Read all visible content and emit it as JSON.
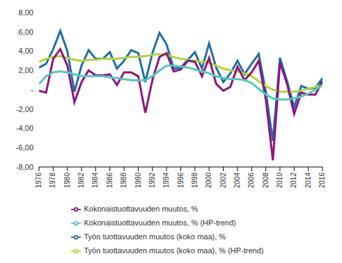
{
  "chart_data": {
    "type": "line",
    "x": [
      1976,
      1977,
      1978,
      1979,
      1980,
      1981,
      1982,
      1983,
      1984,
      1985,
      1986,
      1987,
      1988,
      1989,
      1990,
      1991,
      1992,
      1993,
      1994,
      1995,
      1996,
      1997,
      1998,
      1999,
      2000,
      2001,
      2002,
      2003,
      2004,
      2005,
      2006,
      2007,
      2008,
      2009,
      2010,
      2011,
      2012,
      2013,
      2014,
      2015,
      2016
    ],
    "xlim": [
      1976,
      2016
    ],
    "xticks": [
      1976,
      1978,
      1980,
      1982,
      1984,
      1986,
      1988,
      1990,
      1992,
      1994,
      1996,
      1998,
      2000,
      2002,
      2004,
      2006,
      2008,
      2010,
      2012,
      2014,
      2016
    ],
    "ylim": [
      -8,
      8
    ],
    "yticks": [
      {
        "value": -8,
        "label": "-8,00"
      },
      {
        "value": -6,
        "label": "-6,00"
      },
      {
        "value": -4,
        "label": "-4,00"
      },
      {
        "value": -2,
        "label": "-2,00"
      },
      {
        "value": 0,
        "label": "-"
      },
      {
        "value": 2,
        "label": "2,00"
      },
      {
        "value": 4,
        "label": "4,00"
      },
      {
        "value": 6,
        "label": "6,00"
      },
      {
        "value": 8,
        "label": "8,00"
      }
    ],
    "grid": false,
    "legend": "bottom",
    "series": [
      {
        "name": "Työn tuottavuuden muutos (koko maa), %",
        "color": "#1d6fa3",
        "values": [
          2.3,
          2.7,
          4.2,
          6.1,
          4.0,
          -0.2,
          2.5,
          4.1,
          3.2,
          3.2,
          3.9,
          2.2,
          3.0,
          4.1,
          3.8,
          0.8,
          3.8,
          5.9,
          4.7,
          2.2,
          2.3,
          3.1,
          3.9,
          2.2,
          4.8,
          2.3,
          0.8,
          1.7,
          3.0,
          1.6,
          2.7,
          3.7,
          -0.2,
          -5.3,
          3.3,
          0.9,
          -1.8,
          0.4,
          0.1,
          0.2,
          1.2
        ]
      },
      {
        "name": "Työn tuottavuuden muutos (koko maa), % (HP-trend)",
        "color": "#b5d334",
        "values": [
          2.9,
          3.2,
          3.4,
          3.5,
          3.3,
          3.1,
          3.0,
          3.1,
          3.1,
          3.2,
          3.2,
          3.2,
          3.3,
          3.4,
          3.4,
          3.5,
          3.6,
          3.7,
          3.6,
          3.4,
          3.2,
          3.1,
          3.0,
          2.9,
          2.8,
          2.5,
          2.2,
          2.0,
          1.9,
          1.7,
          1.4,
          0.9,
          0.4,
          0.0,
          -0.2,
          -0.2,
          -0.2,
          -0.1,
          0.1,
          0.3,
          0.6
        ]
      },
      {
        "name": "Kokonaistuottavuuden muutos, %",
        "color": "#8e1580",
        "values": [
          -0.1,
          -0.3,
          3.2,
          4.2,
          2.5,
          -1.3,
          0.8,
          2.0,
          1.5,
          1.5,
          1.6,
          0.5,
          1.8,
          1.8,
          1.4,
          -2.4,
          1.0,
          3.4,
          3.8,
          1.9,
          2.1,
          3.0,
          2.9,
          1.4,
          3.3,
          0.6,
          -0.1,
          0.3,
          2.4,
          1.0,
          1.8,
          3.0,
          -1.0,
          -7.3,
          2.8,
          0.6,
          -2.5,
          -0.3,
          -0.5,
          -0.5,
          0.9
        ]
      },
      {
        "name": "Kokonaistuottavuuden muutos, % (HP-trend)",
        "color": "#4fc9c0",
        "values": [
          0.6,
          1.4,
          1.8,
          1.9,
          1.8,
          1.6,
          1.4,
          1.4,
          1.4,
          1.4,
          1.3,
          1.2,
          1.1,
          1.0,
          1.0,
          1.0,
          1.4,
          2.0,
          2.5,
          2.5,
          2.4,
          2.3,
          2.1,
          1.9,
          1.7,
          1.4,
          1.2,
          1.1,
          1.1,
          1.0,
          0.7,
          0.1,
          -0.5,
          -0.9,
          -1.0,
          -1.0,
          -0.9,
          -0.7,
          -0.4,
          0.0,
          0.5
        ]
      }
    ]
  }
}
